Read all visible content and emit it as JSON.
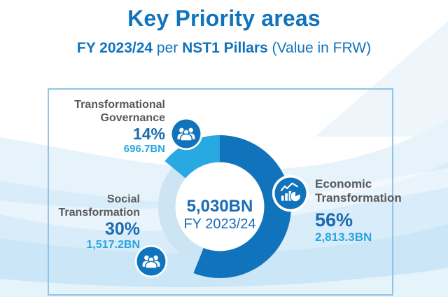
{
  "page": {
    "title": "Key Priority areas",
    "subtitle_parts": [
      {
        "text": "FY 2023/24"
      },
      {
        "text": " per "
      },
      {
        "text": "NST1 Pillars"
      },
      {
        "text": " (Value in FRW)"
      }
    ]
  },
  "chart_data": {
    "type": "pie",
    "title": "Key Priority areas",
    "subtitle": "FY 2023/24 per NST1 Pillars (Value in FRW)",
    "unit": "FRW BN",
    "center": {
      "total": "5,030BN",
      "period": "FY 2023/24"
    },
    "start_angle_deg": 0,
    "direction": "clockwise",
    "inner_r": 63,
    "slices": [
      {
        "label": "Economic Transformation",
        "pct": 56,
        "value_bn": 2813.3,
        "value_text": "2,813.3BN",
        "color": "#1173bc",
        "outer_r": 102,
        "icon": "growth-chart"
      },
      {
        "label": "Social Transformation",
        "pct": 30,
        "value_bn": 1517.2,
        "value_text": "1,517.2BN",
        "color": "#cde4f4",
        "outer_r": 88,
        "icon": "people-group"
      },
      {
        "label": "Transformational Governance",
        "pct": 14,
        "value_bn": 696.7,
        "value_text": "696.7BN",
        "color": "#29a9e1",
        "outer_r": 102,
        "icon": "people-group"
      }
    ]
  },
  "labels": {
    "governance": {
      "line1": "Transformational",
      "line2": "Governance",
      "pct": "14%",
      "value": "696.7BN"
    },
    "social": {
      "line1": "Social",
      "line2": "Transformation",
      "pct": "30%",
      "value": "1,517.2BN"
    },
    "economic": {
      "line1": "Economic",
      "line2": "Transformation",
      "pct": "56%",
      "value": "2,813.3BN"
    }
  },
  "colors": {
    "title_blue": "#1173bd",
    "slice_dark_blue": "#1173bc",
    "slice_cyan": "#29a9e1",
    "slice_pale_blue": "#cde4f4",
    "pct_blue": "#1c6bb2",
    "value_cyan": "#29a4e0",
    "center_blue": "#1b6cb5",
    "label_gray": "#58595b",
    "frame_border": "#8fc3e8"
  }
}
